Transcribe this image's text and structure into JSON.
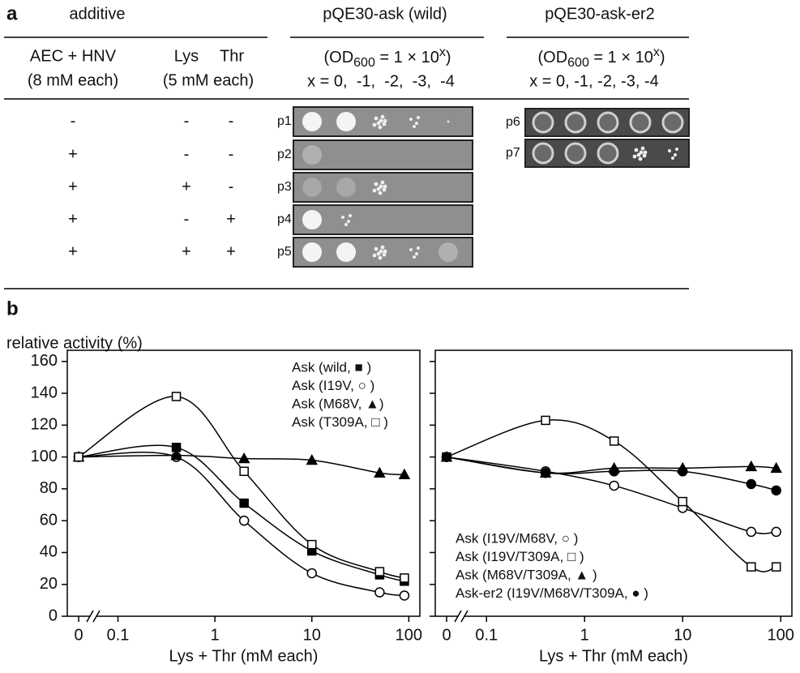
{
  "panel_a": {
    "label": "a",
    "headers": [
      "additive",
      "pQE30-ask (wild)",
      "pQE30-ask-er2"
    ],
    "subheaders": {
      "aec": "AEC + HNV",
      "lys": "Lys",
      "thr": "Thr",
      "aec_conc": "(8 mM each)",
      "lt_conc": "(5 mM each)",
      "od": [
        "(OD",
        "600",
        " = 1 × 10",
        "x",
        ")"
      ],
      "dilution_wild": "x = 0,  -1,  -2,  -3,  -4",
      "dilution_er2": "x = 0, -1, -2, -3, -4"
    },
    "rows": [
      [
        "-",
        "-",
        "-"
      ],
      [
        "+",
        "-",
        "-"
      ],
      [
        "+",
        "+",
        "-"
      ],
      [
        "+",
        "-",
        "+"
      ],
      [
        "+",
        "+",
        "+"
      ]
    ],
    "plates_wild": [
      "p1",
      "p2",
      "p3",
      "p4",
      "p5"
    ],
    "plates_er2": [
      "p6",
      "p7"
    ]
  },
  "panel_b": {
    "label": "b",
    "ylabel": "relative activity (%)"
  },
  "chart_data": [
    {
      "type": "line",
      "xlabel": "Lys + Thr (mM each)",
      "x_log": true,
      "x_break": true,
      "x": [
        0,
        0.4,
        2,
        10,
        50,
        90
      ],
      "xlim": [
        0.03,
        130
      ],
      "xticks": [
        0,
        0.1,
        1,
        10,
        100
      ],
      "ylim": [
        0,
        167
      ],
      "yticks": [
        0,
        20,
        40,
        60,
        80,
        100,
        120,
        140,
        160
      ],
      "show_ytick_labels": true,
      "legend": "upper right",
      "series": [
        {
          "name": "Ask (wild, ■ )",
          "color": "#000000",
          "marker": "square",
          "filled": true,
          "values": [
            100,
            106,
            71,
            41,
            26,
            22
          ]
        },
        {
          "name": "Ask (I19V, ○ )",
          "color": "#000000",
          "marker": "circle",
          "filled": false,
          "values": [
            100,
            100,
            60,
            27,
            15,
            13
          ]
        },
        {
          "name": "Ask (M68V, ▲)",
          "color": "#000000",
          "marker": "triangle",
          "filled": true,
          "values": [
            100,
            101,
            99,
            98,
            90,
            89
          ]
        },
        {
          "name": "Ask (T309A, □ )",
          "color": "#000000",
          "marker": "square",
          "filled": false,
          "values": [
            100,
            138,
            91,
            45,
            28,
            24
          ]
        }
      ]
    },
    {
      "type": "line",
      "xlabel": "Lys + Thr (mM each)",
      "x_log": true,
      "x_break": true,
      "x": [
        0,
        0.4,
        2,
        10,
        50,
        90
      ],
      "xlim": [
        0.03,
        130
      ],
      "xticks": [
        0,
        0.1,
        1,
        10,
        100
      ],
      "ylim": [
        0,
        167
      ],
      "yticks": [
        0,
        20,
        40,
        60,
        80,
        100,
        120,
        140,
        160
      ],
      "show_ytick_labels": false,
      "legend": "lower left",
      "series": [
        {
          "name": "Ask (I19V/M68V, ○ )",
          "color": "#000000",
          "marker": "circle",
          "filled": false,
          "values": [
            100,
            91,
            82,
            68,
            53,
            53
          ]
        },
        {
          "name": "Ask (I19V/T309A, □ )",
          "color": "#000000",
          "marker": "square",
          "filled": false,
          "values": [
            100,
            123,
            110,
            72,
            31,
            31
          ]
        },
        {
          "name": "Ask (M68V/T309A, ▲ )",
          "color": "#000000",
          "marker": "triangle",
          "filled": true,
          "values": [
            100,
            90,
            93,
            93,
            94,
            93
          ]
        },
        {
          "name": "Ask-er2 (I19V/M68V/T309A, ● )",
          "color": "#000000",
          "marker": "circle",
          "filled": true,
          "values": [
            100,
            90,
            91,
            91,
            83,
            79
          ]
        }
      ]
    }
  ]
}
